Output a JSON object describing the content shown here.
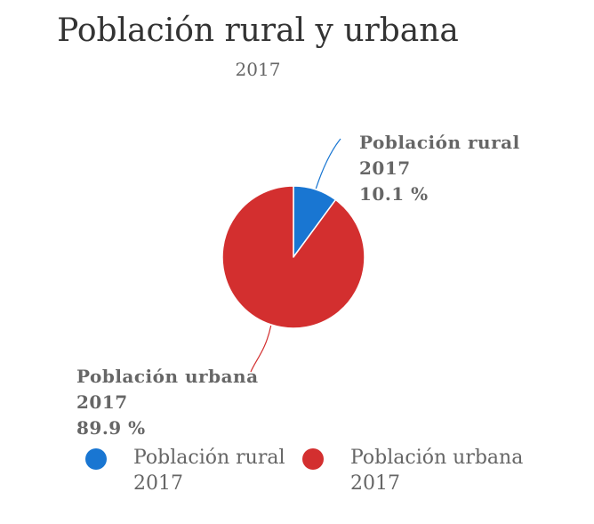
{
  "chart_data": {
    "type": "pie",
    "title": "Población rural y urbana",
    "subtitle": "2017",
    "slices": [
      {
        "name": "Población rural 2017",
        "label_line1": "Población rural",
        "label_line2": "2017",
        "value": 10.1,
        "percent_label": "10.1 %",
        "color": "#1976d2"
      },
      {
        "name": "Población urbana 2017",
        "label_line1": "Población urbana",
        "label_line2": "2017",
        "value": 89.9,
        "percent_label": "89.9 %",
        "color": "#d32f2f"
      }
    ],
    "legend": {
      "placement": "bottom",
      "entries": [
        {
          "line1": "Población rural",
          "line2": "2017",
          "color": "#1976d2"
        },
        {
          "line1": "Población urbana",
          "line2": "2017",
          "color": "#d32f2f"
        }
      ]
    }
  }
}
